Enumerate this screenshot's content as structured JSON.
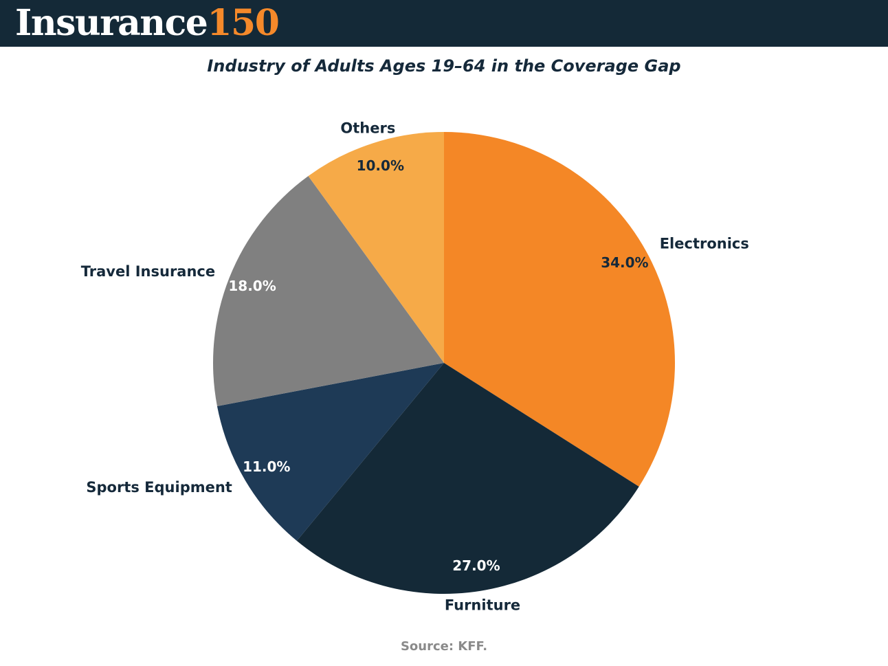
{
  "brand": {
    "logo_word": "Insurance",
    "logo_number": "150"
  },
  "chart_data": {
    "type": "pie",
    "title": "Industry of Adults Ages 19–64 in the Coverage Gap",
    "categories": [
      "Electronics",
      "Furniture",
      "Sports Equipment",
      "Travel Insurance",
      "Others"
    ],
    "values": [
      34.0,
      27.0,
      11.0,
      18.0,
      10.0
    ],
    "value_labels": [
      "34.0%",
      "27.0%",
      "11.0%",
      "18.0%",
      "10.0%"
    ],
    "colors": [
      "#f48726",
      "#142937",
      "#1e3a56",
      "#808080",
      "#f6aa48"
    ],
    "value_label_colors": [
      "#15293a",
      "#ffffff",
      "#ffffff",
      "#ffffff",
      "#15293a"
    ],
    "start": "12 o'clock",
    "direction": "clockwise",
    "legend": "none"
  },
  "source": "Source: KFF."
}
